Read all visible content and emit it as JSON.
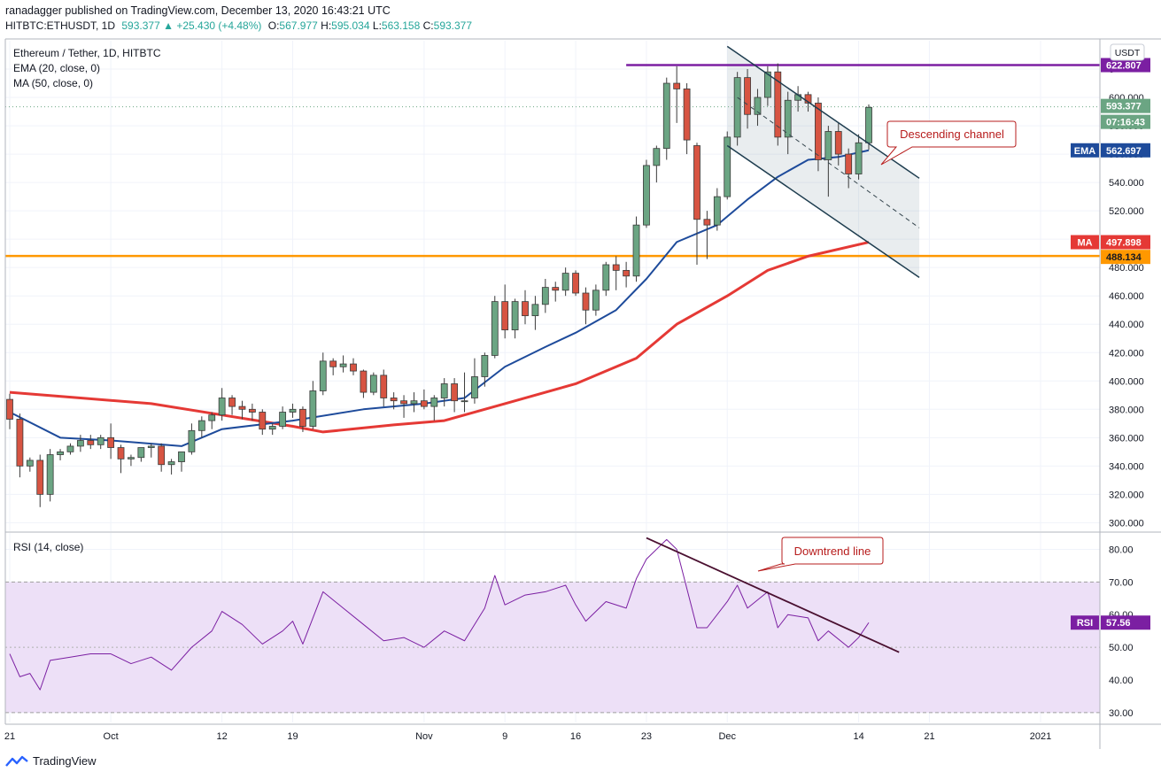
{
  "header": {
    "line1": "ranadagger published on TradingView.com, December 13, 2020 16:43:21 UTC",
    "symbol": "HITBTC:ETHUSDT, 1D",
    "last": "593.377",
    "change": "+25.430 (+4.48%)",
    "o_label": "O:",
    "o": "567.977",
    "h_label": "H:",
    "h": "595.034",
    "l_label": "L:",
    "l": "563.158",
    "c_label": "C:",
    "c": "593.377"
  },
  "legend": {
    "title": "Ethereum / Tether, 1D, HITBTC",
    "ema": "EMA (20, close, 0)",
    "ma": "MA (50, close, 0)",
    "rsi": "RSI (14, close)"
  },
  "currency_badge": "USDT",
  "annotations": {
    "channel": "Descending channel",
    "downtrend": "Downtrend line"
  },
  "price_badges": {
    "resistance": "622.807",
    "last": "593.377",
    "countdown": "07:16:43",
    "ema_label": "EMA",
    "ema": "562.697",
    "ma_label": "MA",
    "ma": "497.898",
    "support": "488.134",
    "rsi_label": "RSI",
    "rsi": "57.56"
  },
  "footer": {
    "brand": "TradingView"
  },
  "colors": {
    "up": "#6ba583",
    "down": "#d75442",
    "ema": "#1e4b9b",
    "ma": "#e53935",
    "resistance": "#7b1fa2",
    "support": "#ff9800",
    "channel": "#1e3d4f",
    "rsi": "#7b1fa2",
    "rsi_band": "#ede0f7",
    "annotation": "#b71c1c"
  },
  "chart_data": {
    "type": "candlestick",
    "price_axis": {
      "ticks": [
        300,
        320,
        340,
        360,
        380,
        400,
        420,
        440,
        460,
        480,
        500,
        520,
        540,
        560,
        580,
        600,
        620
      ],
      "range": [
        294,
        640
      ]
    },
    "price_tick_labels": [
      "300.000",
      "320.000",
      "340.000",
      "360.000",
      "380.000",
      "400.000",
      "420.000",
      "440.000",
      "460.000",
      "480.000",
      "500.000",
      "520.000",
      "540.000",
      "560.000",
      "580.000",
      "600.000",
      "6"
    ],
    "x_ticks": [
      {
        "label": "21",
        "date": "2020-09-21"
      },
      {
        "label": "Oct",
        "date": "2020-10-01"
      },
      {
        "label": "12",
        "date": "2020-10-12"
      },
      {
        "label": "19",
        "date": "2020-10-19"
      },
      {
        "label": "Nov",
        "date": "2020-11-01"
      },
      {
        "label": "9",
        "date": "2020-11-09"
      },
      {
        "label": "16",
        "date": "2020-11-16"
      },
      {
        "label": "23",
        "date": "2020-11-23"
      },
      {
        "label": "Dec",
        "date": "2020-12-01"
      },
      {
        "label": "14",
        "date": "2020-12-14"
      },
      {
        "label": "21",
        "date": "2020-12-21"
      },
      {
        "label": "2021",
        "date": "2021-01-01"
      }
    ],
    "x_range": [
      "2020-09-21",
      "2021-01-06"
    ],
    "candles": [
      {
        "d": "2020-09-21",
        "o": 387,
        "h": 391,
        "l": 366,
        "c": 373
      },
      {
        "d": "2020-09-22",
        "o": 373,
        "h": 377,
        "l": 332,
        "c": 340
      },
      {
        "d": "2020-09-23",
        "o": 340,
        "h": 346,
        "l": 336,
        "c": 344
      },
      {
        "d": "2020-09-24",
        "o": 344,
        "h": 348,
        "l": 311,
        "c": 320
      },
      {
        "d": "2020-09-25",
        "o": 320,
        "h": 352,
        "l": 315,
        "c": 348
      },
      {
        "d": "2020-09-26",
        "o": 348,
        "h": 352,
        "l": 344,
        "c": 350
      },
      {
        "d": "2020-09-27",
        "o": 350,
        "h": 356,
        "l": 348,
        "c": 354
      },
      {
        "d": "2020-09-28",
        "o": 354,
        "h": 362,
        "l": 350,
        "c": 358
      },
      {
        "d": "2020-09-29",
        "o": 358,
        "h": 362,
        "l": 352,
        "c": 355
      },
      {
        "d": "2020-09-30",
        "o": 355,
        "h": 362,
        "l": 352,
        "c": 360
      },
      {
        "d": "2020-10-01",
        "o": 360,
        "h": 370,
        "l": 345,
        "c": 353
      },
      {
        "d": "2020-10-02",
        "o": 353,
        "h": 355,
        "l": 335,
        "c": 345
      },
      {
        "d": "2020-10-03",
        "o": 345,
        "h": 348,
        "l": 340,
        "c": 346
      },
      {
        "d": "2020-10-04",
        "o": 346,
        "h": 353,
        "l": 343,
        "c": 353
      },
      {
        "d": "2020-10-05",
        "o": 353,
        "h": 356,
        "l": 346,
        "c": 354
      },
      {
        "d": "2020-10-06",
        "o": 354,
        "h": 356,
        "l": 336,
        "c": 341
      },
      {
        "d": "2020-10-07",
        "o": 341,
        "h": 345,
        "l": 334,
        "c": 343
      },
      {
        "d": "2020-10-08",
        "o": 343,
        "h": 350,
        "l": 336,
        "c": 350
      },
      {
        "d": "2020-10-09",
        "o": 350,
        "h": 370,
        "l": 348,
        "c": 365
      },
      {
        "d": "2020-10-10",
        "o": 365,
        "h": 375,
        "l": 360,
        "c": 372
      },
      {
        "d": "2020-10-11",
        "o": 372,
        "h": 378,
        "l": 366,
        "c": 376
      },
      {
        "d": "2020-10-12",
        "o": 376,
        "h": 395,
        "l": 372,
        "c": 388
      },
      {
        "d": "2020-10-13",
        "o": 388,
        "h": 390,
        "l": 376,
        "c": 382
      },
      {
        "d": "2020-10-14",
        "o": 382,
        "h": 386,
        "l": 373,
        "c": 380
      },
      {
        "d": "2020-10-15",
        "o": 380,
        "h": 384,
        "l": 372,
        "c": 378
      },
      {
        "d": "2020-10-16",
        "o": 378,
        "h": 380,
        "l": 362,
        "c": 366
      },
      {
        "d": "2020-10-17",
        "o": 366,
        "h": 370,
        "l": 362,
        "c": 368
      },
      {
        "d": "2020-10-18",
        "o": 368,
        "h": 382,
        "l": 366,
        "c": 378
      },
      {
        "d": "2020-10-19",
        "o": 378,
        "h": 384,
        "l": 374,
        "c": 380
      },
      {
        "d": "2020-10-20",
        "o": 380,
        "h": 382,
        "l": 364,
        "c": 368
      },
      {
        "d": "2020-10-21",
        "o": 368,
        "h": 400,
        "l": 366,
        "c": 393
      },
      {
        "d": "2020-10-22",
        "o": 393,
        "h": 420,
        "l": 390,
        "c": 414
      },
      {
        "d": "2020-10-23",
        "o": 414,
        "h": 416,
        "l": 404,
        "c": 410
      },
      {
        "d": "2020-10-24",
        "o": 410,
        "h": 418,
        "l": 406,
        "c": 412
      },
      {
        "d": "2020-10-25",
        "o": 412,
        "h": 416,
        "l": 404,
        "c": 407
      },
      {
        "d": "2020-10-26",
        "o": 407,
        "h": 408,
        "l": 388,
        "c": 392
      },
      {
        "d": "2020-10-27",
        "o": 392,
        "h": 406,
        "l": 390,
        "c": 404
      },
      {
        "d": "2020-10-28",
        "o": 404,
        "h": 408,
        "l": 382,
        "c": 388
      },
      {
        "d": "2020-10-29",
        "o": 388,
        "h": 392,
        "l": 380,
        "c": 386
      },
      {
        "d": "2020-10-30",
        "o": 386,
        "h": 390,
        "l": 374,
        "c": 384
      },
      {
        "d": "2020-10-31",
        "o": 384,
        "h": 392,
        "l": 378,
        "c": 386
      },
      {
        "d": "2020-11-01",
        "o": 386,
        "h": 394,
        "l": 380,
        "c": 382
      },
      {
        "d": "2020-11-02",
        "o": 382,
        "h": 390,
        "l": 372,
        "c": 388
      },
      {
        "d": "2020-11-03",
        "o": 388,
        "h": 402,
        "l": 382,
        "c": 398
      },
      {
        "d": "2020-11-04",
        "o": 398,
        "h": 402,
        "l": 378,
        "c": 386
      },
      {
        "d": "2020-11-05",
        "o": 386,
        "h": 406,
        "l": 378,
        "c": 386
      },
      {
        "d": "2020-11-06",
        "o": 388,
        "h": 416,
        "l": 384,
        "c": 403
      },
      {
        "d": "2020-11-07",
        "o": 403,
        "h": 420,
        "l": 396,
        "c": 418
      },
      {
        "d": "2020-11-08",
        "o": 418,
        "h": 460,
        "l": 416,
        "c": 456
      },
      {
        "d": "2020-11-09",
        "o": 456,
        "h": 468,
        "l": 430,
        "c": 436
      },
      {
        "d": "2020-11-10",
        "o": 436,
        "h": 458,
        "l": 430,
        "c": 456
      },
      {
        "d": "2020-11-11",
        "o": 456,
        "h": 464,
        "l": 440,
        "c": 446
      },
      {
        "d": "2020-11-12",
        "o": 446,
        "h": 460,
        "l": 436,
        "c": 454
      },
      {
        "d": "2020-11-13",
        "o": 454,
        "h": 472,
        "l": 448,
        "c": 466
      },
      {
        "d": "2020-11-14",
        "o": 466,
        "h": 470,
        "l": 456,
        "c": 464
      },
      {
        "d": "2020-11-15",
        "o": 464,
        "h": 480,
        "l": 460,
        "c": 476
      },
      {
        "d": "2020-11-16",
        "o": 476,
        "h": 478,
        "l": 460,
        "c": 462
      },
      {
        "d": "2020-11-17",
        "o": 462,
        "h": 466,
        "l": 440,
        "c": 450
      },
      {
        "d": "2020-11-18",
        "o": 450,
        "h": 468,
        "l": 446,
        "c": 464
      },
      {
        "d": "2020-11-19",
        "o": 464,
        "h": 484,
        "l": 460,
        "c": 482
      },
      {
        "d": "2020-11-20",
        "o": 482,
        "h": 488,
        "l": 464,
        "c": 478
      },
      {
        "d": "2020-11-21",
        "o": 478,
        "h": 484,
        "l": 466,
        "c": 474
      },
      {
        "d": "2020-11-22",
        "o": 474,
        "h": 516,
        "l": 470,
        "c": 510
      },
      {
        "d": "2020-11-23",
        "o": 510,
        "h": 556,
        "l": 508,
        "c": 552
      },
      {
        "d": "2020-11-24",
        "o": 552,
        "h": 566,
        "l": 540,
        "c": 564
      },
      {
        "d": "2020-11-25",
        "o": 564,
        "h": 614,
        "l": 556,
        "c": 610
      },
      {
        "d": "2020-11-26",
        "o": 610,
        "h": 622,
        "l": 582,
        "c": 606
      },
      {
        "d": "2020-11-27",
        "o": 606,
        "h": 610,
        "l": 560,
        "c": 570
      },
      {
        "d": "2020-11-28",
        "o": 566,
        "h": 568,
        "l": 482,
        "c": 514
      },
      {
        "d": "2020-11-29",
        "o": 514,
        "h": 520,
        "l": 486,
        "c": 510
      },
      {
        "d": "2020-11-30",
        "o": 510,
        "h": 536,
        "l": 506,
        "c": 530
      },
      {
        "d": "2020-12-01",
        "o": 530,
        "h": 576,
        "l": 528,
        "c": 572
      },
      {
        "d": "2020-12-02",
        "o": 572,
        "h": 618,
        "l": 566,
        "c": 614
      },
      {
        "d": "2020-12-03",
        "o": 614,
        "h": 620,
        "l": 578,
        "c": 588
      },
      {
        "d": "2020-12-04",
        "o": 588,
        "h": 606,
        "l": 580,
        "c": 600
      },
      {
        "d": "2020-12-05",
        "o": 600,
        "h": 622,
        "l": 594,
        "c": 618
      },
      {
        "d": "2020-12-06",
        "o": 618,
        "h": 624,
        "l": 566,
        "c": 572
      },
      {
        "d": "2020-12-07",
        "o": 572,
        "h": 604,
        "l": 560,
        "c": 598
      },
      {
        "d": "2020-12-08",
        "o": 598,
        "h": 608,
        "l": 590,
        "c": 602
      },
      {
        "d": "2020-12-09",
        "o": 602,
        "h": 604,
        "l": 590,
        "c": 596
      },
      {
        "d": "2020-12-10",
        "o": 596,
        "h": 600,
        "l": 548,
        "c": 556
      },
      {
        "d": "2020-12-11",
        "o": 556,
        "h": 580,
        "l": 530,
        "c": 576
      },
      {
        "d": "2020-12-12",
        "o": 576,
        "h": 582,
        "l": 552,
        "c": 560
      },
      {
        "d": "2020-12-13",
        "o": 560,
        "h": 564,
        "l": 536,
        "c": 546
      },
      {
        "d": "2020-12-14",
        "o": 546,
        "h": 574,
        "l": 542,
        "c": 568
      },
      {
        "d": "2020-12-15",
        "o": 568,
        "h": 595,
        "l": 563,
        "c": 593
      }
    ],
    "ema": [
      {
        "d": "2020-09-21",
        "v": 378
      },
      {
        "d": "2020-09-26",
        "v": 360
      },
      {
        "d": "2020-10-01",
        "v": 358
      },
      {
        "d": "2020-10-08",
        "v": 354
      },
      {
        "d": "2020-10-12",
        "v": 366
      },
      {
        "d": "2020-10-19",
        "v": 372
      },
      {
        "d": "2020-10-26",
        "v": 380
      },
      {
        "d": "2020-11-01",
        "v": 384
      },
      {
        "d": "2020-11-05",
        "v": 388
      },
      {
        "d": "2020-11-09",
        "v": 410
      },
      {
        "d": "2020-11-13",
        "v": 424
      },
      {
        "d": "2020-11-16",
        "v": 434
      },
      {
        "d": "2020-11-20",
        "v": 450
      },
      {
        "d": "2020-11-23",
        "v": 472
      },
      {
        "d": "2020-11-26",
        "v": 498
      },
      {
        "d": "2020-11-30",
        "v": 510
      },
      {
        "d": "2020-12-03",
        "v": 528
      },
      {
        "d": "2020-12-06",
        "v": 544
      },
      {
        "d": "2020-12-09",
        "v": 556
      },
      {
        "d": "2020-12-12",
        "v": 558
      },
      {
        "d": "2020-12-15",
        "v": 562.7
      }
    ],
    "ma": [
      {
        "d": "2020-09-21",
        "v": 392
      },
      {
        "d": "2020-09-28",
        "v": 388
      },
      {
        "d": "2020-10-05",
        "v": 384
      },
      {
        "d": "2020-10-12",
        "v": 376
      },
      {
        "d": "2020-10-19",
        "v": 368
      },
      {
        "d": "2020-10-22",
        "v": 364
      },
      {
        "d": "2020-10-29",
        "v": 369
      },
      {
        "d": "2020-11-03",
        "v": 372
      },
      {
        "d": "2020-11-09",
        "v": 384
      },
      {
        "d": "2020-11-16",
        "v": 398
      },
      {
        "d": "2020-11-22",
        "v": 416
      },
      {
        "d": "2020-11-26",
        "v": 440
      },
      {
        "d": "2020-12-01",
        "v": 460
      },
      {
        "d": "2020-12-05",
        "v": 478
      },
      {
        "d": "2020-12-09",
        "v": 488
      },
      {
        "d": "2020-12-15",
        "v": 497.9
      }
    ],
    "resistance": 622.807,
    "support": 488.134,
    "channel_upper": [
      {
        "d": "2020-12-01",
        "v": 636
      },
      {
        "d": "2020-12-20",
        "v": 543
      }
    ],
    "channel_lower": [
      {
        "d": "2020-12-01",
        "v": 566
      },
      {
        "d": "2020-12-20",
        "v": 473
      }
    ],
    "channel_mid": [
      {
        "d": "2020-12-02",
        "v": 600
      },
      {
        "d": "2020-12-20",
        "v": 508
      }
    ],
    "rsi": {
      "axis": {
        "ticks": [
          30,
          40,
          50,
          60,
          70,
          80
        ],
        "range": [
          27,
          85
        ]
      },
      "tick_labels": [
        "30.00",
        "40.00",
        "50.00",
        "60.00",
        "70.00",
        "80.00"
      ],
      "band": [
        30,
        70
      ],
      "values": [
        {
          "d": "2020-09-21",
          "v": 48
        },
        {
          "d": "2020-09-22",
          "v": 41
        },
        {
          "d": "2020-09-23",
          "v": 42
        },
        {
          "d": "2020-09-24",
          "v": 37
        },
        {
          "d": "2020-09-25",
          "v": 46
        },
        {
          "d": "2020-09-27",
          "v": 47
        },
        {
          "d": "2020-09-29",
          "v": 48
        },
        {
          "d": "2020-10-01",
          "v": 48
        },
        {
          "d": "2020-10-03",
          "v": 45
        },
        {
          "d": "2020-10-05",
          "v": 47
        },
        {
          "d": "2020-10-07",
          "v": 43
        },
        {
          "d": "2020-10-09",
          "v": 50
        },
        {
          "d": "2020-10-11",
          "v": 55
        },
        {
          "d": "2020-10-12",
          "v": 61
        },
        {
          "d": "2020-10-14",
          "v": 57
        },
        {
          "d": "2020-10-16",
          "v": 51
        },
        {
          "d": "2020-10-18",
          "v": 55
        },
        {
          "d": "2020-10-19",
          "v": 58
        },
        {
          "d": "2020-10-20",
          "v": 51
        },
        {
          "d": "2020-10-22",
          "v": 67
        },
        {
          "d": "2020-10-24",
          "v": 62
        },
        {
          "d": "2020-10-26",
          "v": 57
        },
        {
          "d": "2020-10-28",
          "v": 52
        },
        {
          "d": "2020-10-30",
          "v": 53
        },
        {
          "d": "2020-11-01",
          "v": 50
        },
        {
          "d": "2020-11-03",
          "v": 55
        },
        {
          "d": "2020-11-05",
          "v": 52
        },
        {
          "d": "2020-11-07",
          "v": 62
        },
        {
          "d": "2020-11-08",
          "v": 72
        },
        {
          "d": "2020-11-09",
          "v": 63
        },
        {
          "d": "2020-11-11",
          "v": 66
        },
        {
          "d": "2020-11-13",
          "v": 67
        },
        {
          "d": "2020-11-15",
          "v": 69
        },
        {
          "d": "2020-11-16",
          "v": 63
        },
        {
          "d": "2020-11-17",
          "v": 58
        },
        {
          "d": "2020-11-19",
          "v": 64
        },
        {
          "d": "2020-11-21",
          "v": 62
        },
        {
          "d": "2020-11-22",
          "v": 71
        },
        {
          "d": "2020-11-23",
          "v": 77
        },
        {
          "d": "2020-11-25",
          "v": 83
        },
        {
          "d": "2020-11-26",
          "v": 80
        },
        {
          "d": "2020-11-28",
          "v": 56
        },
        {
          "d": "2020-11-29",
          "v": 56
        },
        {
          "d": "2020-12-01",
          "v": 64
        },
        {
          "d": "2020-12-02",
          "v": 69
        },
        {
          "d": "2020-12-03",
          "v": 62
        },
        {
          "d": "2020-12-05",
          "v": 67
        },
        {
          "d": "2020-12-06",
          "v": 56
        },
        {
          "d": "2020-12-07",
          "v": 60
        },
        {
          "d": "2020-12-09",
          "v": 59
        },
        {
          "d": "2020-12-10",
          "v": 52
        },
        {
          "d": "2020-12-11",
          "v": 55
        },
        {
          "d": "2020-12-13",
          "v": 50
        },
        {
          "d": "2020-12-14",
          "v": 53
        },
        {
          "d": "2020-12-15",
          "v": 57.56
        }
      ],
      "trendline": [
        {
          "d": "2020-11-23",
          "v": 83.5
        },
        {
          "d": "2020-12-18",
          "v": 48.5
        }
      ]
    }
  }
}
